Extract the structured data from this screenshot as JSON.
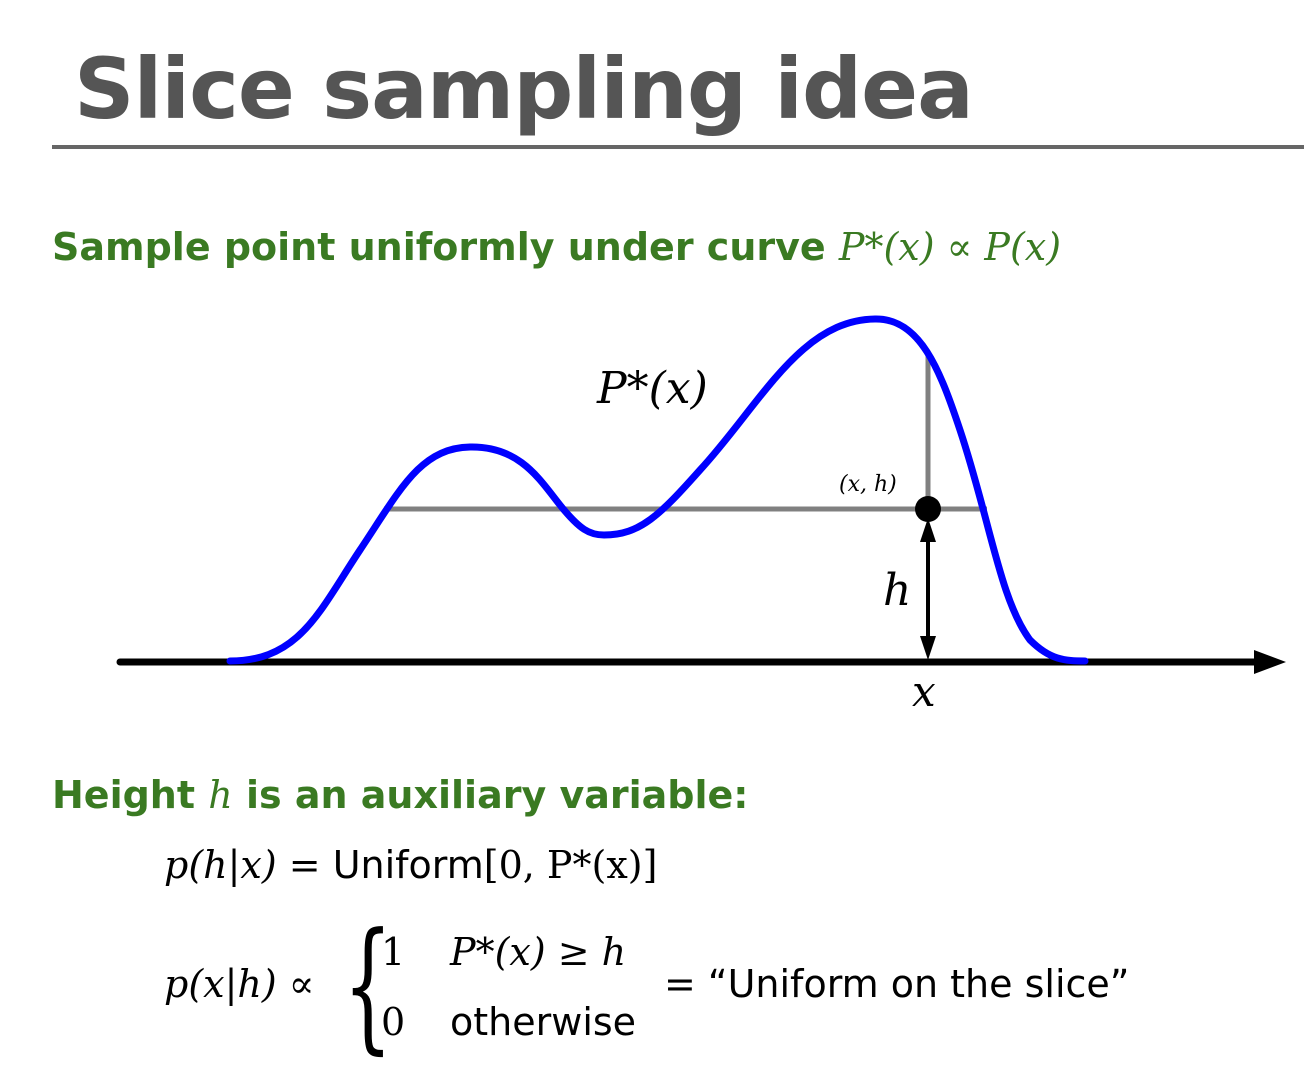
{
  "slide": {
    "title": "Slice sampling idea",
    "heading1": {
      "text": "Sample point uniformly under curve",
      "math": "P*(x) ∝ P(x)"
    },
    "heading2": {
      "prefix": "Height",
      "math": "h",
      "suffix": "is an auxiliary variable:"
    }
  },
  "figure": {
    "curve_label": "P*(x)",
    "point_label": "(x, h)",
    "height_label": "h",
    "axis_label": "x",
    "colors": {
      "curve": "#0000ff",
      "slice": "#808080",
      "axis": "#000000",
      "point": "#000000"
    }
  },
  "equations": {
    "eq1_lhs": "p(h|x) =",
    "eq1_text": "Uniform",
    "eq1_math": "[0, P*(x)]",
    "eq2_lhs": "p(x|h) ∝",
    "case1_value": "1",
    "case1_condition": "P*(x) ≥ h",
    "case2_value": "0",
    "case2_condition": "otherwise",
    "eq2_rhs": "= “Uniform on the slice”"
  }
}
